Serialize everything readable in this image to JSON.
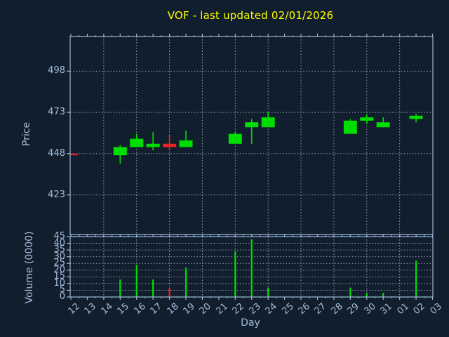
{
  "figure": {
    "background_color": "#111e2e",
    "colors": {
      "up": "#00dd00",
      "down": "#ee2222",
      "axis_frame": "#9cb8d6",
      "grid": "#98a3b0",
      "title": "#ffff00",
      "tick_label": "#a3bdd9"
    }
  },
  "chart_data": {
    "type": "candlestick",
    "title": "VOF - last updated 02/01/2026",
    "xlabel": "Day",
    "legend": "none",
    "grid": "dotted; horizontal at price/volume ticks, vertical every 2nd day",
    "price_axis": {
      "label": "Price",
      "ticks": [
        498,
        473,
        448,
        423
      ],
      "ylim": [
        399,
        519
      ]
    },
    "volume_axis": {
      "label": "Volume (0000)",
      "ticks": [
        45,
        40,
        35,
        30,
        25,
        20,
        15,
        10,
        5,
        0
      ],
      "ylim": [
        0,
        45
      ]
    },
    "x_categories": [
      "12",
      "13",
      "14",
      "15",
      "16",
      "17",
      "18",
      "19",
      "20",
      "21",
      "22",
      "23",
      "24",
      "25",
      "26",
      "27",
      "28",
      "29",
      "30",
      "31",
      "01",
      "02",
      "03"
    ],
    "vertical_grid_day_indices": [
      2,
      4,
      6,
      8,
      10,
      12,
      14,
      16,
      18,
      20
    ],
    "series": [
      {
        "day": "12",
        "open": 448,
        "high": 448,
        "low": 447,
        "close": 447,
        "volume": 0,
        "direction": "down"
      },
      {
        "day": "15",
        "open": 447,
        "high": 453,
        "low": 442,
        "close": 452,
        "volume": 13,
        "direction": "up"
      },
      {
        "day": "16",
        "open": 452,
        "high": 460,
        "low": 452,
        "close": 457,
        "volume": 24,
        "direction": "up"
      },
      {
        "day": "17",
        "open": 452,
        "high": 461,
        "low": 450,
        "close": 454,
        "volume": 13,
        "direction": "up"
      },
      {
        "day": "18",
        "open": 454,
        "high": 459,
        "low": 450,
        "close": 452,
        "volume": 7,
        "direction": "down"
      },
      {
        "day": "19",
        "open": 452,
        "high": 462,
        "low": 452,
        "close": 456,
        "volume": 22,
        "direction": "up"
      },
      {
        "day": "22",
        "open": 454,
        "high": 461,
        "low": 454,
        "close": 460,
        "volume": 34,
        "direction": "up"
      },
      {
        "day": "23",
        "open": 464,
        "high": 469,
        "low": 454,
        "close": 467,
        "volume": 43,
        "direction": "up"
      },
      {
        "day": "24",
        "open": 464,
        "high": 473,
        "low": 464,
        "close": 470,
        "volume": 7,
        "direction": "up"
      },
      {
        "day": "29",
        "open": 460,
        "high": 469,
        "low": 460,
        "close": 468,
        "volume": 7,
        "direction": "up"
      },
      {
        "day": "30",
        "open": 468,
        "high": 472,
        "low": 466,
        "close": 470,
        "volume": 3,
        "direction": "up"
      },
      {
        "day": "31",
        "open": 464,
        "high": 470,
        "low": 464,
        "close": 467,
        "volume": 3,
        "direction": "up"
      },
      {
        "day": "02",
        "open": 469,
        "high": 472,
        "low": 467,
        "close": 471,
        "volume": 27,
        "direction": "up"
      }
    ]
  }
}
